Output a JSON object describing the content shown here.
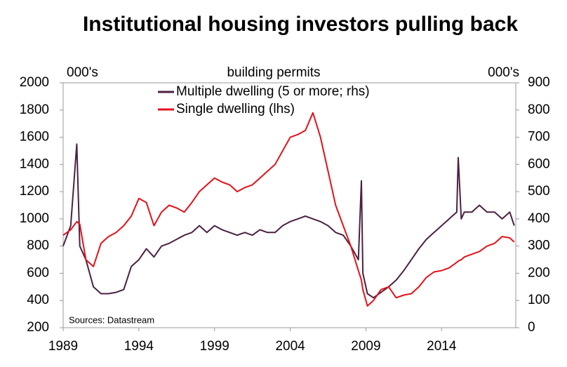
{
  "chart_data": {
    "type": "line",
    "title": "Institutional housing investors pulling back",
    "subtitle": "building permits",
    "ylabel": "000's",
    "y2label": "000's",
    "source": "Sources: Datastream",
    "x": [
      1989,
      1989.5,
      1989.9,
      1990.1,
      1990.5,
      1991,
      1991.5,
      1992,
      1992.5,
      1993,
      1993.5,
      1994,
      1994.5,
      1995,
      1995.5,
      1996,
      1996.5,
      1997,
      1997.5,
      1998,
      1998.5,
      1999,
      1999.5,
      2000,
      2000.5,
      2001,
      2001.5,
      2002,
      2002.5,
      2003,
      2003.5,
      2004,
      2004.5,
      2005,
      2005.5,
      2006,
      2006.5,
      2007,
      2007.5,
      2008,
      2008.5,
      2008.7,
      2008.8,
      2009.1,
      2009.5,
      2010,
      2010.5,
      2011,
      2011.5,
      2012,
      2012.5,
      2013,
      2013.5,
      2014,
      2014.5,
      2015,
      2015.1,
      2015.3,
      2015.5,
      2016,
      2016.5,
      2017,
      2017.5,
      2018,
      2018.5,
      2018.8
    ],
    "series": [
      {
        "name": "Multiple dwelling (5 or more; rhs)",
        "color": "#4b2142",
        "axis": "y2",
        "values": [
          300,
          375,
          675,
          300,
          250,
          150,
          125,
          125,
          130,
          140,
          225,
          250,
          290,
          260,
          300,
          310,
          325,
          340,
          350,
          375,
          350,
          375,
          360,
          350,
          340,
          350,
          340,
          360,
          350,
          350,
          375,
          390,
          400,
          410,
          400,
          390,
          375,
          350,
          340,
          300,
          250,
          540,
          200,
          125,
          110,
          130,
          150,
          175,
          210,
          250,
          290,
          325,
          350,
          375,
          400,
          425,
          625,
          400,
          425,
          425,
          450,
          425,
          425,
          400,
          425,
          375
        ]
      },
      {
        "name": "Single dwelling (lhs)",
        "color": "#e3121b",
        "values": [
          880,
          920,
          980,
          960,
          700,
          650,
          820,
          870,
          900,
          950,
          1020,
          1150,
          1120,
          950,
          1050,
          1100,
          1080,
          1050,
          1120,
          1200,
          1250,
          1300,
          1270,
          1250,
          1200,
          1230,
          1250,
          1300,
          1350,
          1400,
          1500,
          1600,
          1620,
          1650,
          1780,
          1600,
          1350,
          1100,
          950,
          800,
          620,
          550,
          480,
          360,
          400,
          480,
          500,
          420,
          440,
          450,
          500,
          570,
          610,
          620,
          640,
          680,
          690,
          700,
          720,
          740,
          760,
          800,
          820,
          870,
          860,
          830
        ]
      }
    ],
    "xlim": [
      1989,
      2018.9
    ],
    "xticks": [
      1989,
      1994,
      1999,
      2004,
      2009,
      2014
    ],
    "ylim": [
      200,
      2000
    ],
    "yticks": [
      200,
      400,
      600,
      800,
      1000,
      1200,
      1400,
      1600,
      1800,
      2000
    ],
    "y2lim": [
      0,
      900
    ],
    "y2ticks": [
      0,
      100,
      200,
      300,
      400,
      500,
      600,
      700,
      800,
      900
    ]
  }
}
